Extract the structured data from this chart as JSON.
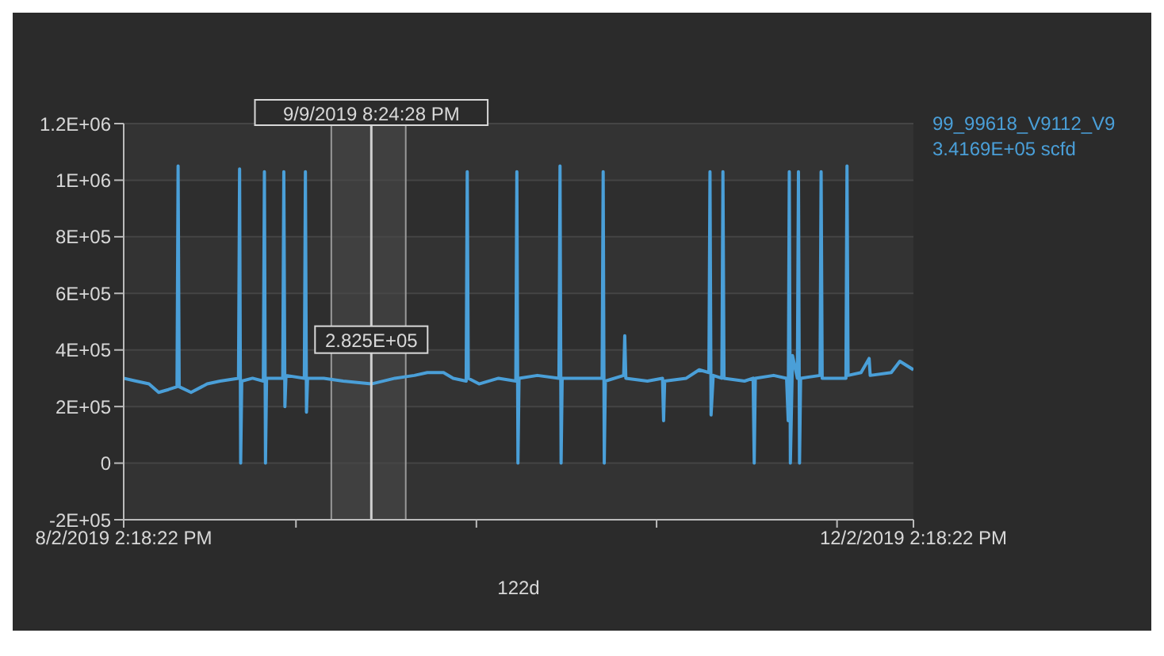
{
  "chart_data": {
    "type": "line",
    "x": [
      "2019-08-02T14:18",
      "2019-08-04T12:00",
      "2019-08-06T12:00",
      "2019-08-08T00:00",
      "2019-08-09T12:00",
      "2019-08-10T20:00",
      "2019-08-11T00:00",
      "2019-08-11T04:00",
      "2019-08-13T00:00",
      "2019-08-15T12:00",
      "2019-08-17T12:00",
      "2019-08-20T08:00",
      "2019-08-20T12:00",
      "2019-08-20T16:00",
      "2019-08-20T20:00",
      "2019-08-22T12:00",
      "2019-08-24T04:00",
      "2019-08-24T08:00",
      "2019-08-24T12:00",
      "2019-08-24T16:00",
      "2019-08-27T04:00",
      "2019-08-27T08:00",
      "2019-08-27T12:00",
      "2019-08-27T16:00",
      "2019-08-30T12:00",
      "2019-08-30T16:00",
      "2019-08-30T20:00",
      "2019-08-31T00:00",
      "2019-09-02T12:00",
      "2019-09-05T12:00",
      "2019-09-09T20:24",
      "2019-09-13T12:00",
      "2019-09-16T12:00",
      "2019-09-18T12:00",
      "2019-09-21T00:00",
      "2019-09-22T12:00",
      "2019-09-24T12:00",
      "2019-09-24T16:00",
      "2019-09-24T20:00",
      "2019-09-26T12:00",
      "2019-09-29T12:00",
      "2019-10-02T04:00",
      "2019-10-02T08:00",
      "2019-10-02T12:00",
      "2019-10-02T16:00",
      "2019-10-05T12:00",
      "2019-10-08T20:00",
      "2019-10-09T00:00",
      "2019-10-09T04:00",
      "2019-10-09T08:00",
      "2019-10-12T12:00",
      "2019-10-15T12:00",
      "2019-10-15T16:00",
      "2019-10-15T20:00",
      "2019-10-16T00:00",
      "2019-10-18T20:00",
      "2019-10-19T00:00",
      "2019-10-19T04:00",
      "2019-10-22T12:00",
      "2019-10-24T20:00",
      "2019-10-25T00:00",
      "2019-10-25T04:00",
      "2019-10-28T12:00",
      "2019-10-30T12:00",
      "2019-11-01T00:00",
      "2019-11-01T04:00",
      "2019-11-01T08:00",
      "2019-11-01T16:00",
      "2019-11-03T00:00",
      "2019-11-03T04:00",
      "2019-11-03T08:00",
      "2019-11-06T12:00",
      "2019-11-07T20:00",
      "2019-11-08T00:00",
      "2019-11-08T04:00",
      "2019-11-11T00:00",
      "2019-11-13T00:00",
      "2019-11-13T06:00",
      "2019-11-13T10:00",
      "2019-11-13T14:00",
      "2019-11-13T22:00",
      "2019-11-14T16:00",
      "2019-11-14T20:00",
      "2019-11-15T00:00",
      "2019-11-15T04:00",
      "2019-11-18T04:00",
      "2019-11-18T08:00",
      "2019-11-18T12:00",
      "2019-11-22T04:00",
      "2019-11-22T08:00",
      "2019-11-22T12:00",
      "2019-11-24T12:00",
      "2019-11-25T18:00",
      "2019-11-25T22:00",
      "2019-11-29T04:00",
      "2019-11-30T12:00",
      "2019-12-02T14:18"
    ],
    "series": [
      {
        "name": "99_99618_V9112_V9",
        "color": "#4a9fd8",
        "values": [
          300000,
          290000,
          280000,
          250000,
          260000,
          270000,
          1050000,
          270000,
          250000,
          280000,
          290000,
          300000,
          1040000,
          0,
          290000,
          300000,
          290000,
          1030000,
          0,
          300000,
          300000,
          1030000,
          200000,
          310000,
          300000,
          1030000,
          180000,
          300000,
          300000,
          290000,
          280000,
          300000,
          310000,
          320000,
          320000,
          300000,
          290000,
          1030000,
          300000,
          280000,
          300000,
          290000,
          1030000,
          0,
          300000,
          310000,
          300000,
          1050000,
          0,
          300000,
          300000,
          300000,
          1030000,
          0,
          290000,
          310000,
          450000,
          300000,
          290000,
          300000,
          150000,
          290000,
          300000,
          330000,
          320000,
          1030000,
          170000,
          310000,
          300000,
          1030000,
          300000,
          290000,
          300000,
          0,
          300000,
          310000,
          300000,
          150000,
          1030000,
          0,
          380000,
          300000,
          1030000,
          0,
          300000,
          310000,
          1030000,
          300000,
          300000,
          1050000,
          310000,
          320000,
          370000,
          310000,
          320000,
          360000,
          330000
        ]
      }
    ],
    "xlim": [
      "2019-08-02T14:18",
      "2019-12-02T14:18"
    ],
    "xticks": [
      {
        "value": "2019-08-02T14:18",
        "label": "8/2/2019 2:18:22 PM"
      },
      {
        "value": "2019-08-29T05:00",
        "label": null
      },
      {
        "value": "2019-09-26T02:00",
        "label": null
      },
      {
        "value": "2019-10-23T22:00",
        "label": null
      },
      {
        "value": "2019-11-20T19:00",
        "label": null
      },
      {
        "value": "2019-12-02T14:18",
        "label": "12/2/2019 2:18:22 PM"
      }
    ],
    "ylim": [
      -200000,
      1200000
    ],
    "yticks": [
      {
        "value": -200000,
        "label": "-2E+05"
      },
      {
        "value": 0,
        "label": "0"
      },
      {
        "value": 200000,
        "label": "2E+05"
      },
      {
        "value": 400000,
        "label": "4E+05"
      },
      {
        "value": 600000,
        "label": "6E+05"
      },
      {
        "value": 800000,
        "label": "8E+05"
      },
      {
        "value": 1000000,
        "label": "1E+06"
      },
      {
        "value": 1200000,
        "label": "1.2E+06"
      }
    ],
    "grid": "y",
    "legend": "top right",
    "marker": "none",
    "line_style": "solid",
    "ref_lines": [
      {
        "axis": "x",
        "value": "2019-09-09T20:24",
        "label": "9/9/2019 8:24:28 PM",
        "color": "#d0d0d0"
      }
    ],
    "bands": [
      {
        "axis": "x",
        "from": "2019-09-03T16:00",
        "to": "2019-09-15T04:00",
        "color": "#4a4a4a"
      }
    ],
    "annotations": [
      "122d",
      "3.4169E+05 scfd",
      {
        "text": "2.825E+05",
        "x": "2019-09-09T20:24",
        "y": 282500
      }
    ]
  }
}
